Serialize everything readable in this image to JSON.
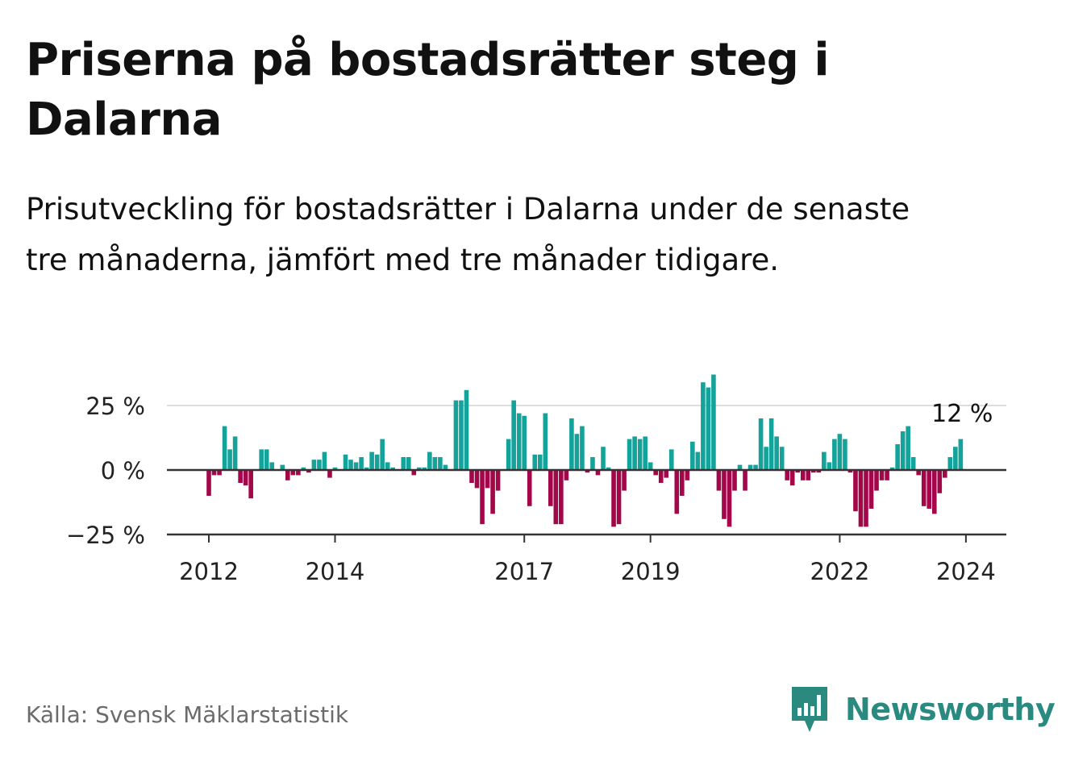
{
  "title": "Priserna på bostadsrätter steg i Dalarna",
  "subtitle": "Prisutveckling för bostadsrätter i Dalarna under de senaste tre månaderna, jämfört med tre månader tidigare.",
  "source": "Källa: Svensk Mäklarstatistik",
  "brand": {
    "name": "Newsworthy",
    "icon": "newsworthy-logo-icon"
  },
  "colors": {
    "positive": "#14a39a",
    "negative": "#a3074a",
    "grid": "#dddddd",
    "axis": "#333333",
    "brand": "#2a8a80"
  },
  "chart_data": {
    "type": "bar",
    "title": "Priserna på bostadsrätter steg i Dalarna",
    "xlabel": "",
    "ylabel": "",
    "unit": "%",
    "ylim": [
      -25,
      25
    ],
    "yticks": [
      25,
      0,
      -25
    ],
    "ytick_labels": [
      "25 %",
      "0 %",
      "−25 %"
    ],
    "x_start": "2012-01",
    "xticks": [
      {
        "label": "2012",
        "index": 0
      },
      {
        "label": "2014",
        "index": 24
      },
      {
        "label": "2017",
        "index": 60
      },
      {
        "label": "2019",
        "index": 84
      },
      {
        "label": "2022",
        "index": 120
      },
      {
        "label": "2024",
        "index": 144
      }
    ],
    "last_value_label": "12 %",
    "grid": true,
    "series": [
      {
        "name": "Prisutveckling",
        "values": [
          -10,
          -2,
          -2,
          17,
          8,
          13,
          -5,
          -6,
          -11,
          0,
          8,
          8,
          3,
          0,
          2,
          -4,
          -2,
          -2,
          1,
          -1,
          4,
          4,
          7,
          -3,
          1,
          0,
          6,
          4,
          3,
          5,
          1,
          7,
          6,
          12,
          3,
          1,
          0,
          5,
          5,
          -2,
          1,
          1,
          7,
          5,
          5,
          2,
          0,
          27,
          27,
          31,
          -5,
          -7,
          -21,
          -7,
          -17,
          -8,
          0,
          12,
          27,
          22,
          21,
          -14,
          6,
          6,
          22,
          -14,
          -21,
          -21,
          -4,
          20,
          14,
          17,
          -1,
          5,
          -2,
          9,
          1,
          -22,
          -21,
          -8,
          12,
          13,
          12,
          13,
          3,
          -2,
          -5,
          -3,
          8,
          -17,
          -10,
          -4,
          11,
          7,
          34,
          32,
          37,
          -8,
          -19,
          -22,
          -8,
          2,
          -8,
          2,
          2,
          20,
          9,
          20,
          13,
          9,
          -4,
          -6,
          -1,
          -4,
          -4,
          -1,
          -1,
          7,
          3,
          12,
          14,
          12,
          -1,
          -16,
          -22,
          -22,
          -15,
          -8,
          -4,
          -4,
          1,
          10,
          15,
          17,
          5,
          -2,
          -14,
          -15,
          -17,
          -9,
          -3,
          5,
          9,
          12
        ]
      }
    ]
  }
}
